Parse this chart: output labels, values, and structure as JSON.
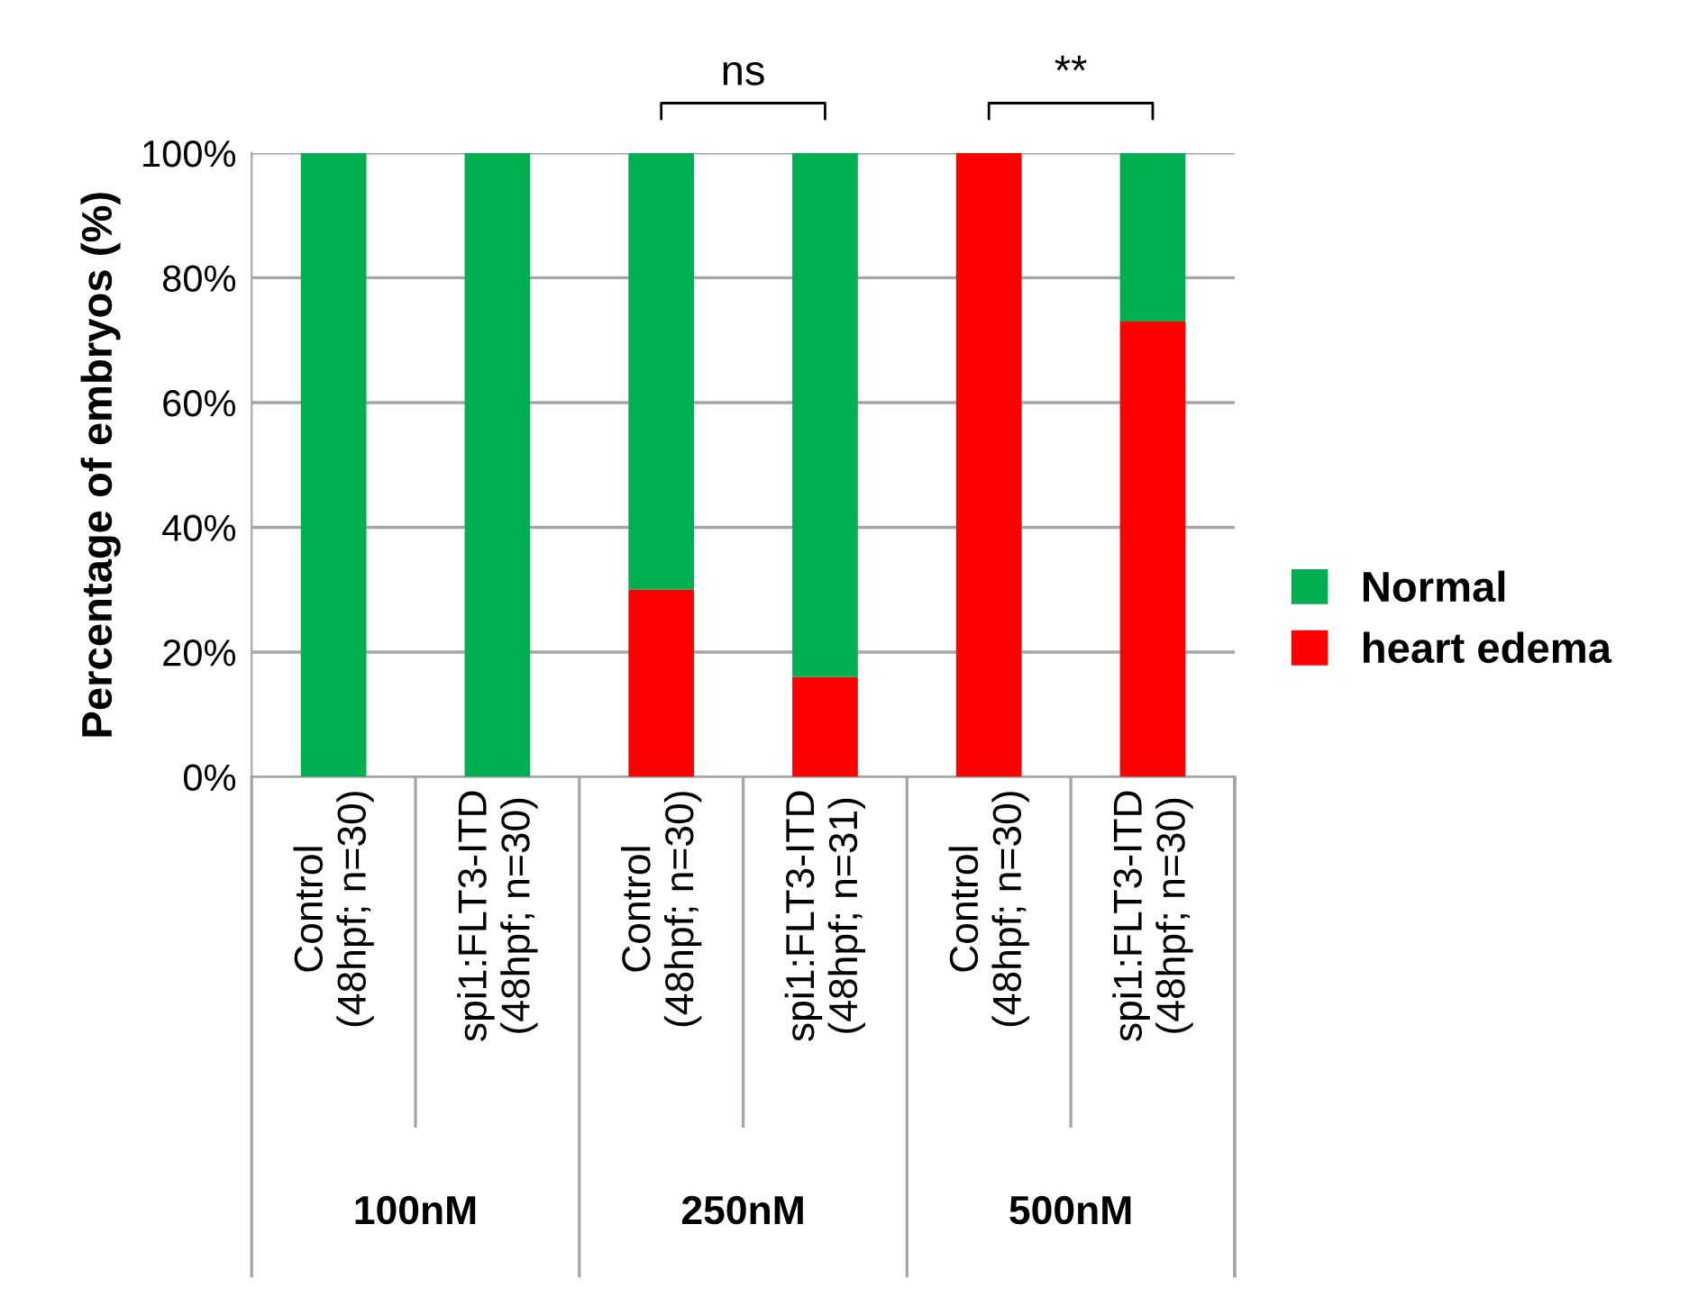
{
  "chart_data": {
    "type": "bar",
    "stacked": true,
    "ylabel": "Percentage of embryos (%)",
    "categories": [
      "Control\n(48hpf; n=30)",
      "spi1:FLT3-ITD\n(48hpf; n=30)",
      "Control\n(48hpf; n=30)",
      "spi1:FLT3-ITD\n(48hpf; n=31)",
      "Control\n(48hpf; n=30)",
      "spi1:FLT3-ITD\n(48hpf; n=30)"
    ],
    "series": [
      {
        "name": "heart edema",
        "color": "#ff0000",
        "values": [
          0,
          0,
          30,
          16,
          100,
          73
        ]
      },
      {
        "name": "Normal",
        "color": "#00b050",
        "values": [
          100,
          100,
          70,
          84,
          0,
          27
        ]
      }
    ],
    "ylim": [
      0,
      100
    ],
    "yticks": [
      {
        "value": 0,
        "label": "0%"
      },
      {
        "value": 20,
        "label": "20%"
      },
      {
        "value": 40,
        "label": "40%"
      },
      {
        "value": 60,
        "label": "60%"
      },
      {
        "value": 80,
        "label": "80%"
      },
      {
        "value": 100,
        "label": "100%"
      }
    ],
    "grid": "y",
    "legend": "right",
    "annotations": [
      "100nM",
      "250nM",
      "500nM",
      "ns",
      "**"
    ]
  }
}
